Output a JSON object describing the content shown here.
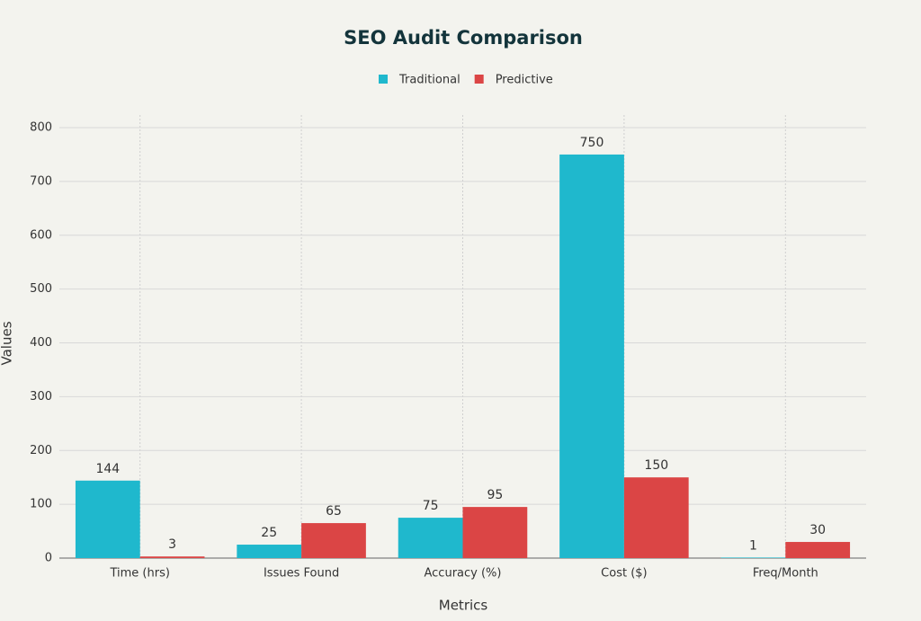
{
  "chart_data": {
    "type": "bar",
    "title": "SEO Audit Comparison",
    "x_label": "Metrics",
    "y_label": "Values",
    "categories": [
      "Time (hrs)",
      "Issues Found",
      "Accuracy (%)",
      "Cost ($)",
      "Freq/Month"
    ],
    "series": [
      {
        "name": "Traditional",
        "color": "#1fb8cd",
        "values": [
          144,
          25,
          75,
          750,
          1
        ]
      },
      {
        "name": "Predictive",
        "color": "#db4545",
        "values": [
          3,
          65,
          95,
          150,
          30
        ]
      }
    ],
    "ylim": [
      0,
      800
    ],
    "yticks": [
      0,
      100,
      200,
      300,
      400,
      500,
      600,
      700,
      800
    ],
    "grid": true,
    "legend": "top"
  }
}
